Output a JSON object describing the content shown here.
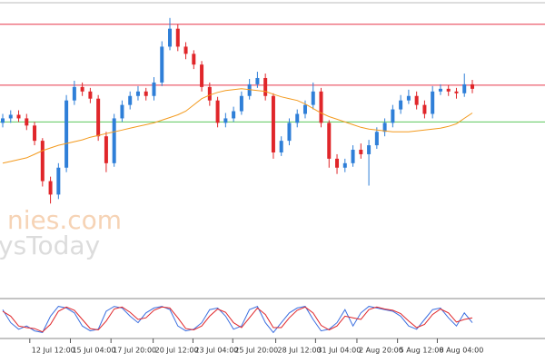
{
  "chart_data": [
    {
      "type": "candlestick",
      "watermark": [
        "nies.com",
        "ysToday"
      ],
      "up_color": "#2f7fd8",
      "down_color": "#e0262a",
      "ylim": [
        0,
        328
      ],
      "open": [
        195,
        200,
        204,
        200,
        192,
        175,
        130,
        115,
        145,
        220,
        235,
        230,
        222,
        180,
        150,
        200,
        215,
        225,
        230,
        225,
        240,
        280,
        300,
        280,
        272,
        260,
        235,
        220,
        195,
        200,
        208,
        225,
        238,
        245,
        225,
        162,
        175,
        195,
        205,
        215,
        230,
        195,
        155,
        145,
        150,
        165,
        160,
        170,
        185,
        195,
        210,
        220,
        225,
        215,
        205,
        230,
        233,
        230,
        228,
        238
      ],
      "high": [
        205,
        209,
        209,
        205,
        196,
        178,
        135,
        150,
        226,
        242,
        240,
        234,
        226,
        185,
        205,
        220,
        230,
        236,
        234,
        246,
        286,
        312,
        305,
        285,
        276,
        264,
        240,
        224,
        206,
        213,
        230,
        244,
        252,
        250,
        228,
        180,
        200,
        210,
        220,
        240,
        234,
        198,
        160,
        155,
        170,
        172,
        176,
        190,
        200,
        215,
        226,
        232,
        230,
        220,
        236,
        238,
        237,
        234,
        250,
        243
      ],
      "low": [
        190,
        195,
        196,
        187,
        170,
        124,
        105,
        110,
        140,
        215,
        225,
        217,
        175,
        140,
        146,
        196,
        210,
        220,
        220,
        220,
        236,
        276,
        275,
        266,
        255,
        230,
        214,
        190,
        190,
        196,
        204,
        221,
        234,
        220,
        155,
        158,
        170,
        190,
        200,
        210,
        190,
        145,
        138,
        140,
        146,
        155,
        125,
        166,
        180,
        190,
        205,
        216,
        210,
        200,
        200,
        226,
        225,
        222,
        224,
        228
      ],
      "close": [
        200,
        204,
        200,
        192,
        175,
        130,
        115,
        145,
        220,
        235,
        230,
        222,
        180,
        150,
        200,
        215,
        225,
        230,
        225,
        240,
        280,
        300,
        280,
        272,
        260,
        235,
        220,
        195,
        200,
        208,
        225,
        238,
        245,
        225,
        162,
        175,
        195,
        205,
        215,
        230,
        195,
        155,
        145,
        150,
        165,
        160,
        170,
        185,
        195,
        210,
        220,
        225,
        215,
        205,
        230,
        233,
        230,
        228,
        238,
        233
      ],
      "ma": {
        "color": "#f39a1e",
        "values": [
          150,
          152,
          154,
          156,
          160,
          164,
          167,
          170,
          172,
          174,
          176,
          179,
          181,
          183,
          185,
          187,
          189,
          191,
          193,
          195,
          198,
          201,
          204,
          208,
          215,
          222,
          226,
          229,
          231,
          232,
          233,
          232,
          231,
          230,
          227,
          224,
          222,
          220,
          216,
          211,
          206,
          202,
          199,
          196,
          193,
          190,
          188,
          187,
          186,
          185,
          185,
          185,
          186,
          187,
          188,
          189,
          191,
          194,
          200,
          206
        ]
      },
      "levels": [
        {
          "value": 305,
          "color": "#e8374a"
        },
        {
          "value": 237,
          "color": "#e8374a"
        },
        {
          "value": 196,
          "color": "#5cc85c"
        }
      ]
    },
    {
      "type": "line",
      "ylim": [
        0,
        100
      ],
      "series": [
        {
          "color": "#3b6fe0",
          "values": [
            80,
            40,
            20,
            30,
            15,
            10,
            60,
            90,
            85,
            70,
            30,
            15,
            20,
            75,
            90,
            85,
            60,
            40,
            70,
            85,
            90,
            80,
            30,
            15,
            20,
            40,
            80,
            85,
            60,
            20,
            30,
            80,
            90,
            40,
            10,
            40,
            70,
            85,
            90,
            50,
            15,
            20,
            40,
            80,
            30,
            70,
            90,
            85,
            80,
            75,
            60,
            30,
            20,
            50,
            80,
            85,
            55,
            30,
            70,
            40
          ]
        },
        {
          "color": "#e0262a",
          "values": [
            75,
            60,
            30,
            25,
            22,
            12,
            35,
            75,
            88,
            78,
            50,
            22,
            18,
            45,
            82,
            88,
            72,
            50,
            55,
            78,
            88,
            85,
            55,
            22,
            18,
            30,
            60,
            82,
            72,
            40,
            25,
            55,
            85,
            65,
            25,
            25,
            55,
            78,
            88,
            70,
            32,
            18,
            30,
            60,
            55,
            50,
            80,
            88,
            82,
            78,
            68,
            45,
            25,
            35,
            65,
            82,
            70,
            42,
            50,
            55
          ]
        }
      ],
      "xticks": [
        {
          "value": 3.4,
          "label": "12 Jul 12:00"
        },
        {
          "value": 8.5,
          "label": "15 Jul 04:00"
        },
        {
          "value": 13.6,
          "label": "17 Jul 20:00"
        },
        {
          "value": 18.9,
          "label": "20 Jul 12:00"
        },
        {
          "value": 23.9,
          "label": "23 Jul 04:00"
        },
        {
          "value": 28.9,
          "label": "25 Jul 20:00"
        },
        {
          "value": 34.3,
          "label": "28 Jul 12:00"
        },
        {
          "value": 39.3,
          "label": "31 Jul 04:00"
        },
        {
          "value": 44.5,
          "label": "2 Aug 20:00"
        },
        {
          "value": 49.6,
          "label": "5 Aug 12:00"
        },
        {
          "value": 54.6,
          "label": "8 Aug 04:00"
        }
      ]
    }
  ]
}
